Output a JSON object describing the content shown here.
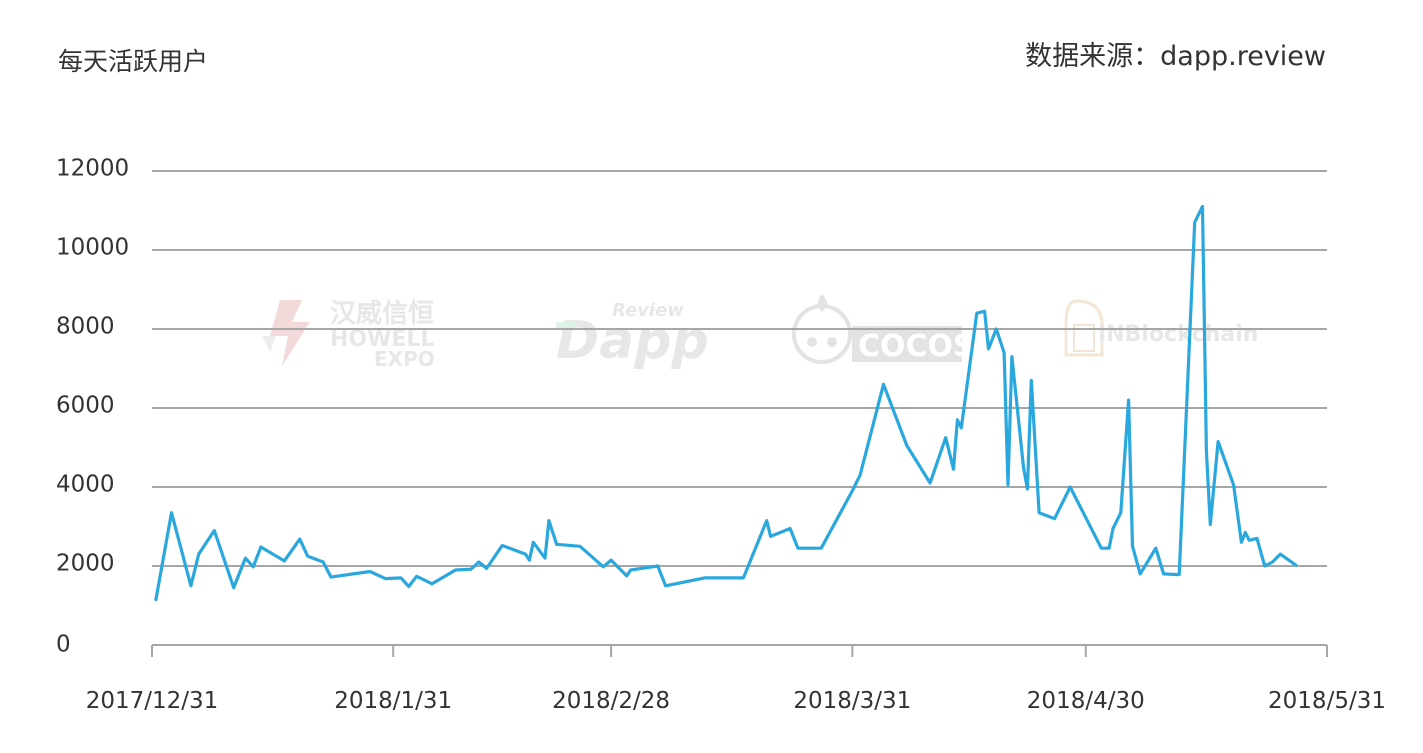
{
  "header": {
    "title": "每天活跃用户",
    "source": "数据来源：dapp.review"
  },
  "watermarks": [
    {
      "name": "howell-expo-logo",
      "cn": "汉威信恒",
      "en1": "HOWELL",
      "en2": "EXPO"
    },
    {
      "name": "dapp-review-logo",
      "small": "Review",
      "big": "Dapp"
    },
    {
      "name": "cocos-logo",
      "text": "COCOS"
    },
    {
      "name": "inblockchain-logo",
      "text": "INBlockchain"
    }
  ],
  "colors": {
    "series": "#2aa8de",
    "grid": "#a6a6a6",
    "watermark": "#e7e7e7"
  },
  "chart_data": {
    "type": "line",
    "title": "每天活跃用户",
    "xlabel": "",
    "ylabel": "",
    "ylim": [
      0,
      12000
    ],
    "y_ticks": [
      0,
      2000,
      4000,
      6000,
      8000,
      10000,
      12000
    ],
    "x_range": [
      "2017-12-31",
      "2018-05-31"
    ],
    "x_ticks": [
      {
        "date": "2017-12-31",
        "label": "2017/12/31"
      },
      {
        "date": "2018-01-31",
        "label": "2018/1/31"
      },
      {
        "date": "2018-02-28",
        "label": "2018/2/28"
      },
      {
        "date": "2018-03-31",
        "label": "2018/3/31"
      },
      {
        "date": "2018-04-30",
        "label": "2018/4/30"
      },
      {
        "date": "2018-05-31",
        "label": "2018/5/31"
      }
    ],
    "grid": true,
    "legend": "none",
    "series": [
      {
        "points": [
          [
            "2017-12-31T12:00",
            1150
          ],
          [
            "2018-01-02T12:00",
            3350
          ],
          [
            "2018-01-05",
            1500
          ],
          [
            "2018-01-06",
            2300
          ],
          [
            "2018-01-08",
            2900
          ],
          [
            "2018-01-10T12:00",
            1450
          ],
          [
            "2018-01-12",
            2200
          ],
          [
            "2018-01-13",
            1980
          ],
          [
            "2018-01-14",
            2480
          ],
          [
            "2018-01-17",
            2130
          ],
          [
            "2018-01-19",
            2680
          ],
          [
            "2018-01-20",
            2250
          ],
          [
            "2018-01-22",
            2100
          ],
          [
            "2018-01-23",
            1720
          ],
          [
            "2018-01-28",
            1860
          ],
          [
            "2018-01-30",
            1680
          ],
          [
            "2018-02-01",
            1700
          ],
          [
            "2018-02-02",
            1480
          ],
          [
            "2018-02-03",
            1740
          ],
          [
            "2018-02-05",
            1550
          ],
          [
            "2018-02-08",
            1900
          ],
          [
            "2018-02-10",
            1920
          ],
          [
            "2018-02-11",
            2100
          ],
          [
            "2018-02-12",
            1940
          ],
          [
            "2018-02-14",
            2520
          ],
          [
            "2018-02-17",
            2300
          ],
          [
            "2018-02-17T12:00",
            2150
          ],
          [
            "2018-02-18",
            2600
          ],
          [
            "2018-02-19T12:00",
            2200
          ],
          [
            "2018-02-20",
            3150
          ],
          [
            "2018-02-21",
            2550
          ],
          [
            "2018-02-24",
            2500
          ],
          [
            "2018-02-27",
            1980
          ],
          [
            "2018-02-28",
            2150
          ],
          [
            "2018-03-02",
            1750
          ],
          [
            "2018-03-02T12:00",
            1900
          ],
          [
            "2018-03-06",
            2000
          ],
          [
            "2018-03-07",
            1500
          ],
          [
            "2018-03-12",
            1700
          ],
          [
            "2018-03-17",
            1700
          ],
          [
            "2018-03-20",
            3150
          ],
          [
            "2018-03-20T12:00",
            2750
          ],
          [
            "2018-03-23",
            2950
          ],
          [
            "2018-03-24",
            2450
          ],
          [
            "2018-03-27",
            2450
          ],
          [
            "2018-03-31",
            3900
          ],
          [
            "2018-04-01",
            4300
          ],
          [
            "2018-04-04",
            6600
          ],
          [
            "2018-04-07",
            5050
          ],
          [
            "2018-04-10",
            4100
          ],
          [
            "2018-04-12",
            5250
          ],
          [
            "2018-04-13",
            4450
          ],
          [
            "2018-04-13T12:00",
            5700
          ],
          [
            "2018-04-14",
            5500
          ],
          [
            "2018-04-16",
            8400
          ],
          [
            "2018-04-17",
            8450
          ],
          [
            "2018-04-17T12:00",
            7500
          ],
          [
            "2018-04-18T12:00",
            8000
          ],
          [
            "2018-04-19T12:00",
            7400
          ],
          [
            "2018-04-20",
            4050
          ],
          [
            "2018-04-20T12:00",
            7300
          ],
          [
            "2018-04-22",
            4500
          ],
          [
            "2018-04-22T12:00",
            3950
          ],
          [
            "2018-04-23",
            6700
          ],
          [
            "2018-04-24",
            3350
          ],
          [
            "2018-04-26",
            3200
          ],
          [
            "2018-04-28",
            4000
          ],
          [
            "2018-05-02",
            2450
          ],
          [
            "2018-05-03",
            2450
          ],
          [
            "2018-05-03T12:00",
            2950
          ],
          [
            "2018-05-04T12:00",
            3350
          ],
          [
            "2018-05-05T12:00",
            6200
          ],
          [
            "2018-05-06",
            2500
          ],
          [
            "2018-05-07",
            1800
          ],
          [
            "2018-05-09",
            2450
          ],
          [
            "2018-05-10",
            1800
          ],
          [
            "2018-05-12",
            1780
          ],
          [
            "2018-05-14",
            10700
          ],
          [
            "2018-05-15",
            11100
          ],
          [
            "2018-05-15T12:00",
            4900
          ],
          [
            "2018-05-16",
            3050
          ],
          [
            "2018-05-17",
            5150
          ],
          [
            "2018-05-19",
            4050
          ],
          [
            "2018-05-20",
            2600
          ],
          [
            "2018-05-20T12:00",
            2850
          ],
          [
            "2018-05-21",
            2650
          ],
          [
            "2018-05-22",
            2700
          ],
          [
            "2018-05-23",
            2000
          ],
          [
            "2018-05-24",
            2100
          ],
          [
            "2018-05-25",
            2300
          ],
          [
            "2018-05-27",
            2020
          ]
        ]
      }
    ]
  }
}
